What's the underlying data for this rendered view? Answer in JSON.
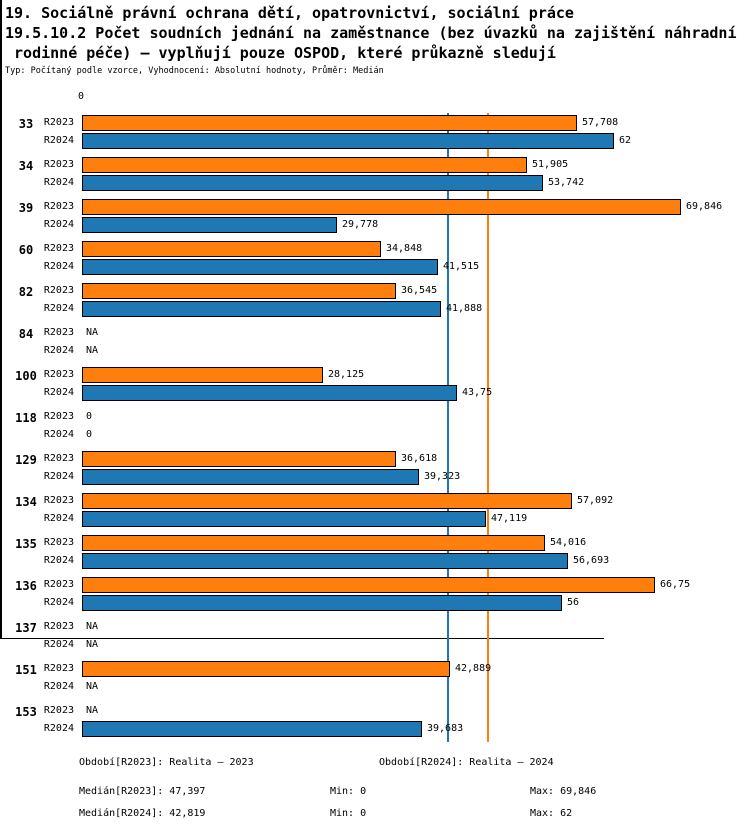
{
  "title": {
    "line1": "19. Sociálně právní ochrana dětí, opatrovnictví, sociální práce",
    "line2": "19.5.10.2 Počet soudních jednání na zaměstnance (bez úvazků na zajištění náhradní",
    "line3": " rodinné péče) – vyplňují pouze OSPOD, které průkazně sledují",
    "meta": "Typ: Počítaný podle vzorce, Vyhodnocení: Absolutní hodnoty, Průměr: Medián"
  },
  "colors": {
    "r2023": "#ff7f0e",
    "r2024": "#1f77b4",
    "axis": "#000000"
  },
  "axis": {
    "zero_label": "0"
  },
  "chart_data": {
    "type": "bar",
    "orientation": "horizontal",
    "title": "19.5.10.2 Počet soudních jednání na zaměstnance (bez úvazků na zajištění náhradní rodinné péče) – vyplňují pouze OSPOD, které průkazně sledují",
    "xlim": [
      0,
      70.4
    ],
    "grid": false,
    "series": [
      {
        "name": "R2023",
        "color": "#ff7f0e"
      },
      {
        "name": "R2024",
        "color": "#1f77b4"
      }
    ],
    "categories": [
      "33",
      "34",
      "39",
      "60",
      "82",
      "84",
      "100",
      "118",
      "129",
      "134",
      "135",
      "136",
      "137",
      "151",
      "153"
    ],
    "groups": [
      {
        "category": "33",
        "values": [
          57.708,
          62
        ],
        "labels": [
          "57,708",
          "62"
        ]
      },
      {
        "category": "34",
        "values": [
          51.905,
          53.742
        ],
        "labels": [
          "51,905",
          "53,742"
        ]
      },
      {
        "category": "39",
        "values": [
          69.846,
          29.778
        ],
        "labels": [
          "69,846",
          "29,778"
        ]
      },
      {
        "category": "60",
        "values": [
          34.848,
          41.515
        ],
        "labels": [
          "34,848",
          "41,515"
        ]
      },
      {
        "category": "82",
        "values": [
          36.545,
          41.888
        ],
        "labels": [
          "36,545",
          "41,888"
        ]
      },
      {
        "category": "84",
        "values": [
          null,
          null
        ],
        "labels": [
          "NA",
          "NA"
        ]
      },
      {
        "category": "100",
        "values": [
          28.125,
          43.75
        ],
        "labels": [
          "28,125",
          "43,75"
        ]
      },
      {
        "category": "118",
        "values": [
          0,
          0
        ],
        "labels": [
          "0",
          "0"
        ]
      },
      {
        "category": "129",
        "values": [
          36.618,
          39.323
        ],
        "labels": [
          "36,618",
          "39,323"
        ]
      },
      {
        "category": "134",
        "values": [
          57.092,
          47.119
        ],
        "labels": [
          "57,092",
          "47,119"
        ]
      },
      {
        "category": "135",
        "values": [
          54.016,
          56.693
        ],
        "labels": [
          "54,016",
          "56,693"
        ]
      },
      {
        "category": "136",
        "values": [
          66.75,
          56
        ],
        "labels": [
          "66,75",
          "56"
        ]
      },
      {
        "category": "137",
        "values": [
          null,
          null
        ],
        "labels": [
          "NA",
          "NA"
        ]
      },
      {
        "category": "151",
        "values": [
          42.889,
          null
        ],
        "labels": [
          "42,889",
          "NA"
        ]
      },
      {
        "category": "153",
        "values": [
          null,
          39.683
        ],
        "labels": [
          "NA",
          "39,683"
        ]
      }
    ],
    "reference_lines": [
      {
        "name": "median-r2024",
        "value": 42.819,
        "color": "#1f77b4"
      },
      {
        "name": "median-r2023",
        "value": 47.397,
        "color": "#ff7f0e"
      }
    ]
  },
  "footer": {
    "period_r2023": "Období[R2023]: Realita – 2023",
    "period_r2024": "Období[R2024]: Realita – 2024",
    "median_r2023": "Medián[R2023]: 47,397",
    "median_r2024": "Medián[R2024]: 42,819",
    "min_r2023": "Min: 0",
    "max_r2023": "Max: 69,846",
    "min_r2024": "Min: 0",
    "max_r2024": "Max: 62"
  }
}
